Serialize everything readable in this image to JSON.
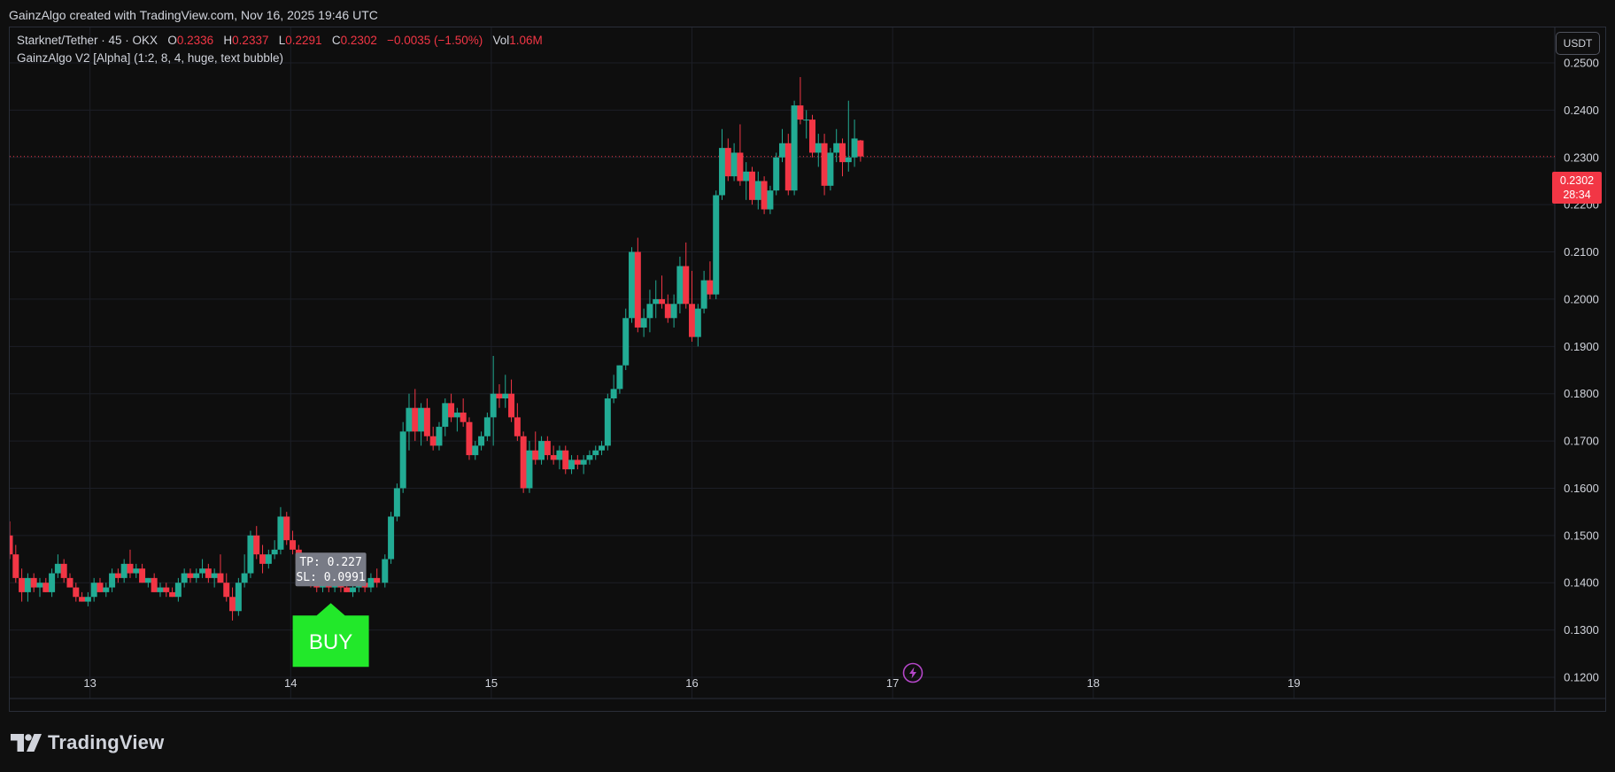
{
  "header": {
    "credit": "GainzAlgo created with TradingView.com, Nov 16, 2025 19:46 UTC"
  },
  "legend": {
    "symbol": "Starknet/Tether · 45 · OKX",
    "o_label": "O",
    "o_value": "0.2336",
    "h_label": "H",
    "h_value": "0.2337",
    "l_label": "L",
    "l_value": "0.2291",
    "c_label": "C",
    "c_value": "0.2302",
    "change": "−0.0035 (−1.50%)",
    "vol_label": "Vol",
    "vol_value": "1.06M",
    "indicator": "GainzAlgo V2 [Alpha] (1:2, 8, 4, huge, text bubble)"
  },
  "currency_button": "USDT",
  "last_price": {
    "value": "0.2302",
    "countdown": "28:34"
  },
  "footer": {
    "brand": "TradingView"
  },
  "colors": {
    "up": "#22ab94",
    "down": "#f23645",
    "buy": "#22e82a",
    "background": "#0e0e0e",
    "grid": "#1c1f27"
  },
  "chart_data": {
    "type": "candlestick",
    "interval": "45",
    "x_range": [
      12.6,
      20.3
    ],
    "ylim": [
      0.1155,
      0.2575
    ],
    "y_ticks": [
      "0.1200",
      "0.1300",
      "0.1400",
      "0.1500",
      "0.1600",
      "0.1700",
      "0.1800",
      "0.1900",
      "0.2000",
      "0.2100",
      "0.2200",
      "0.2300",
      "0.2400",
      "0.2500"
    ],
    "x_ticks": [
      {
        "label": "13",
        "x": 13
      },
      {
        "label": "14",
        "x": 14
      },
      {
        "label": "15",
        "x": 15
      },
      {
        "label": "16",
        "x": 16
      },
      {
        "label": "17",
        "x": 17
      },
      {
        "label": "18",
        "x": 18
      },
      {
        "label": "19",
        "x": 19
      }
    ],
    "last_price": 0.2302,
    "candles": [
      {
        "x": 12.6,
        "o": 0.15,
        "h": 0.153,
        "l": 0.145,
        "c": 0.146
      },
      {
        "x": 12.63,
        "o": 0.146,
        "h": 0.148,
        "l": 0.14,
        "c": 0.141
      },
      {
        "x": 12.66,
        "o": 0.141,
        "h": 0.143,
        "l": 0.136,
        "c": 0.138
      },
      {
        "x": 12.69,
        "o": 0.138,
        "h": 0.142,
        "l": 0.136,
        "c": 0.141
      },
      {
        "x": 12.72,
        "o": 0.141,
        "h": 0.142,
        "l": 0.138,
        "c": 0.139
      },
      {
        "x": 12.75,
        "o": 0.139,
        "h": 0.141,
        "l": 0.137,
        "c": 0.14
      },
      {
        "x": 12.78,
        "o": 0.14,
        "h": 0.141,
        "l": 0.138,
        "c": 0.138
      },
      {
        "x": 12.81,
        "o": 0.138,
        "h": 0.143,
        "l": 0.137,
        "c": 0.142
      },
      {
        "x": 12.84,
        "o": 0.142,
        "h": 0.146,
        "l": 0.141,
        "c": 0.144
      },
      {
        "x": 12.87,
        "o": 0.144,
        "h": 0.145,
        "l": 0.14,
        "c": 0.141
      },
      {
        "x": 12.9,
        "o": 0.141,
        "h": 0.142,
        "l": 0.139,
        "c": 0.139
      },
      {
        "x": 12.93,
        "o": 0.139,
        "h": 0.14,
        "l": 0.136,
        "c": 0.137
      },
      {
        "x": 12.96,
        "o": 0.137,
        "h": 0.138,
        "l": 0.136,
        "c": 0.136
      },
      {
        "x": 12.99,
        "o": 0.136,
        "h": 0.138,
        "l": 0.135,
        "c": 0.137
      },
      {
        "x": 13.02,
        "o": 0.137,
        "h": 0.141,
        "l": 0.136,
        "c": 0.14
      },
      {
        "x": 13.05,
        "o": 0.14,
        "h": 0.141,
        "l": 0.138,
        "c": 0.138
      },
      {
        "x": 13.08,
        "o": 0.138,
        "h": 0.14,
        "l": 0.137,
        "c": 0.139
      },
      {
        "x": 13.11,
        "o": 0.139,
        "h": 0.143,
        "l": 0.138,
        "c": 0.142
      },
      {
        "x": 13.14,
        "o": 0.142,
        "h": 0.143,
        "l": 0.14,
        "c": 0.141
      },
      {
        "x": 13.17,
        "o": 0.141,
        "h": 0.145,
        "l": 0.14,
        "c": 0.144
      },
      {
        "x": 13.2,
        "o": 0.144,
        "h": 0.147,
        "l": 0.141,
        "c": 0.142
      },
      {
        "x": 13.23,
        "o": 0.142,
        "h": 0.144,
        "l": 0.141,
        "c": 0.143
      },
      {
        "x": 13.26,
        "o": 0.143,
        "h": 0.144,
        "l": 0.14,
        "c": 0.14
      },
      {
        "x": 13.29,
        "o": 0.14,
        "h": 0.141,
        "l": 0.139,
        "c": 0.141
      },
      {
        "x": 13.32,
        "o": 0.141,
        "h": 0.142,
        "l": 0.138,
        "c": 0.138
      },
      {
        "x": 13.35,
        "o": 0.138,
        "h": 0.14,
        "l": 0.137,
        "c": 0.139
      },
      {
        "x": 13.38,
        "o": 0.139,
        "h": 0.14,
        "l": 0.137,
        "c": 0.138
      },
      {
        "x": 13.41,
        "o": 0.138,
        "h": 0.139,
        "l": 0.137,
        "c": 0.137
      },
      {
        "x": 13.44,
        "o": 0.137,
        "h": 0.141,
        "l": 0.136,
        "c": 0.14
      },
      {
        "x": 13.47,
        "o": 0.14,
        "h": 0.143,
        "l": 0.139,
        "c": 0.142
      },
      {
        "x": 13.5,
        "o": 0.142,
        "h": 0.143,
        "l": 0.14,
        "c": 0.141
      },
      {
        "x": 13.53,
        "o": 0.141,
        "h": 0.143,
        "l": 0.14,
        "c": 0.142
      },
      {
        "x": 13.56,
        "o": 0.142,
        "h": 0.145,
        "l": 0.141,
        "c": 0.143
      },
      {
        "x": 13.59,
        "o": 0.143,
        "h": 0.144,
        "l": 0.14,
        "c": 0.141
      },
      {
        "x": 13.62,
        "o": 0.141,
        "h": 0.143,
        "l": 0.139,
        "c": 0.142
      },
      {
        "x": 13.65,
        "o": 0.142,
        "h": 0.146,
        "l": 0.14,
        "c": 0.14
      },
      {
        "x": 13.68,
        "o": 0.14,
        "h": 0.142,
        "l": 0.136,
        "c": 0.137
      },
      {
        "x": 13.71,
        "o": 0.137,
        "h": 0.139,
        "l": 0.132,
        "c": 0.134
      },
      {
        "x": 13.74,
        "o": 0.134,
        "h": 0.141,
        "l": 0.133,
        "c": 0.14
      },
      {
        "x": 13.77,
        "o": 0.14,
        "h": 0.146,
        "l": 0.139,
        "c": 0.142
      },
      {
        "x": 13.8,
        "o": 0.142,
        "h": 0.151,
        "l": 0.141,
        "c": 0.15
      },
      {
        "x": 13.83,
        "o": 0.15,
        "h": 0.152,
        "l": 0.145,
        "c": 0.146
      },
      {
        "x": 13.86,
        "o": 0.146,
        "h": 0.148,
        "l": 0.142,
        "c": 0.144
      },
      {
        "x": 13.89,
        "o": 0.144,
        "h": 0.147,
        "l": 0.143,
        "c": 0.146
      },
      {
        "x": 13.92,
        "o": 0.146,
        "h": 0.149,
        "l": 0.145,
        "c": 0.147
      },
      {
        "x": 13.95,
        "o": 0.147,
        "h": 0.156,
        "l": 0.146,
        "c": 0.154
      },
      {
        "x": 13.98,
        "o": 0.154,
        "h": 0.155,
        "l": 0.148,
        "c": 0.149
      },
      {
        "x": 14.01,
        "o": 0.149,
        "h": 0.151,
        "l": 0.146,
        "c": 0.147
      },
      {
        "x": 14.04,
        "o": 0.147,
        "h": 0.148,
        "l": 0.143,
        "c": 0.144
      },
      {
        "x": 14.07,
        "o": 0.144,
        "h": 0.146,
        "l": 0.141,
        "c": 0.142
      },
      {
        "x": 14.1,
        "o": 0.142,
        "h": 0.143,
        "l": 0.139,
        "c": 0.14
      },
      {
        "x": 14.13,
        "o": 0.14,
        "h": 0.141,
        "l": 0.138,
        "c": 0.139
      },
      {
        "x": 14.16,
        "o": 0.139,
        "h": 0.141,
        "l": 0.138,
        "c": 0.14
      },
      {
        "x": 14.19,
        "o": 0.14,
        "h": 0.142,
        "l": 0.138,
        "c": 0.139
      },
      {
        "x": 14.22,
        "o": 0.139,
        "h": 0.141,
        "l": 0.138,
        "c": 0.14
      },
      {
        "x": 14.25,
        "o": 0.14,
        "h": 0.141,
        "l": 0.138,
        "c": 0.139
      },
      {
        "x": 14.28,
        "o": 0.139,
        "h": 0.14,
        "l": 0.138,
        "c": 0.138
      },
      {
        "x": 14.31,
        "o": 0.138,
        "h": 0.14,
        "l": 0.137,
        "c": 0.139
      },
      {
        "x": 14.34,
        "o": 0.139,
        "h": 0.141,
        "l": 0.138,
        "c": 0.14
      },
      {
        "x": 14.37,
        "o": 0.14,
        "h": 0.141,
        "l": 0.138,
        "c": 0.139
      },
      {
        "x": 14.4,
        "o": 0.139,
        "h": 0.142,
        "l": 0.138,
        "c": 0.141
      },
      {
        "x": 14.43,
        "o": 0.141,
        "h": 0.143,
        "l": 0.139,
        "c": 0.14
      },
      {
        "x": 14.47,
        "o": 0.14,
        "h": 0.146,
        "l": 0.139,
        "c": 0.145
      },
      {
        "x": 14.5,
        "o": 0.145,
        "h": 0.155,
        "l": 0.144,
        "c": 0.154
      },
      {
        "x": 14.53,
        "o": 0.154,
        "h": 0.161,
        "l": 0.153,
        "c": 0.16
      },
      {
        "x": 14.56,
        "o": 0.16,
        "h": 0.174,
        "l": 0.159,
        "c": 0.172
      },
      {
        "x": 14.59,
        "o": 0.172,
        "h": 0.18,
        "l": 0.168,
        "c": 0.177
      },
      {
        "x": 14.62,
        "o": 0.177,
        "h": 0.181,
        "l": 0.17,
        "c": 0.172
      },
      {
        "x": 14.65,
        "o": 0.172,
        "h": 0.178,
        "l": 0.169,
        "c": 0.177
      },
      {
        "x": 14.68,
        "o": 0.177,
        "h": 0.179,
        "l": 0.17,
        "c": 0.171
      },
      {
        "x": 14.71,
        "o": 0.171,
        "h": 0.173,
        "l": 0.168,
        "c": 0.169
      },
      {
        "x": 14.74,
        "o": 0.169,
        "h": 0.174,
        "l": 0.168,
        "c": 0.173
      },
      {
        "x": 14.77,
        "o": 0.173,
        "h": 0.179,
        "l": 0.171,
        "c": 0.178
      },
      {
        "x": 14.8,
        "o": 0.178,
        "h": 0.18,
        "l": 0.174,
        "c": 0.175
      },
      {
        "x": 14.83,
        "o": 0.175,
        "h": 0.177,
        "l": 0.172,
        "c": 0.176
      },
      {
        "x": 14.86,
        "o": 0.176,
        "h": 0.179,
        "l": 0.173,
        "c": 0.174
      },
      {
        "x": 14.89,
        "o": 0.174,
        "h": 0.175,
        "l": 0.166,
        "c": 0.167
      },
      {
        "x": 14.92,
        "o": 0.167,
        "h": 0.17,
        "l": 0.166,
        "c": 0.169
      },
      {
        "x": 14.95,
        "o": 0.169,
        "h": 0.172,
        "l": 0.168,
        "c": 0.171
      },
      {
        "x": 14.98,
        "o": 0.171,
        "h": 0.176,
        "l": 0.17,
        "c": 0.175
      },
      {
        "x": 15.01,
        "o": 0.175,
        "h": 0.188,
        "l": 0.169,
        "c": 0.18
      },
      {
        "x": 15.04,
        "o": 0.18,
        "h": 0.182,
        "l": 0.177,
        "c": 0.179
      },
      {
        "x": 15.07,
        "o": 0.179,
        "h": 0.184,
        "l": 0.177,
        "c": 0.18
      },
      {
        "x": 15.1,
        "o": 0.18,
        "h": 0.183,
        "l": 0.174,
        "c": 0.175
      },
      {
        "x": 15.13,
        "o": 0.175,
        "h": 0.178,
        "l": 0.17,
        "c": 0.171
      },
      {
        "x": 15.16,
        "o": 0.171,
        "h": 0.172,
        "l": 0.159,
        "c": 0.16
      },
      {
        "x": 15.19,
        "o": 0.16,
        "h": 0.17,
        "l": 0.159,
        "c": 0.168
      },
      {
        "x": 15.22,
        "o": 0.168,
        "h": 0.172,
        "l": 0.165,
        "c": 0.166
      },
      {
        "x": 15.25,
        "o": 0.166,
        "h": 0.171,
        "l": 0.165,
        "c": 0.17
      },
      {
        "x": 15.28,
        "o": 0.17,
        "h": 0.171,
        "l": 0.166,
        "c": 0.167
      },
      {
        "x": 15.31,
        "o": 0.167,
        "h": 0.169,
        "l": 0.165,
        "c": 0.166
      },
      {
        "x": 15.34,
        "o": 0.166,
        "h": 0.169,
        "l": 0.164,
        "c": 0.168
      },
      {
        "x": 15.37,
        "o": 0.168,
        "h": 0.169,
        "l": 0.163,
        "c": 0.164
      },
      {
        "x": 15.4,
        "o": 0.164,
        "h": 0.167,
        "l": 0.163,
        "c": 0.166
      },
      {
        "x": 15.43,
        "o": 0.166,
        "h": 0.167,
        "l": 0.164,
        "c": 0.165
      },
      {
        "x": 15.46,
        "o": 0.165,
        "h": 0.167,
        "l": 0.163,
        "c": 0.166
      },
      {
        "x": 15.49,
        "o": 0.166,
        "h": 0.168,
        "l": 0.165,
        "c": 0.167
      },
      {
        "x": 15.52,
        "o": 0.167,
        "h": 0.169,
        "l": 0.166,
        "c": 0.168
      },
      {
        "x": 15.55,
        "o": 0.168,
        "h": 0.17,
        "l": 0.167,
        "c": 0.169
      },
      {
        "x": 15.58,
        "o": 0.169,
        "h": 0.18,
        "l": 0.168,
        "c": 0.179
      },
      {
        "x": 15.61,
        "o": 0.179,
        "h": 0.184,
        "l": 0.178,
        "c": 0.181
      },
      {
        "x": 15.64,
        "o": 0.181,
        "h": 0.186,
        "l": 0.18,
        "c": 0.186
      },
      {
        "x": 15.67,
        "o": 0.186,
        "h": 0.198,
        "l": 0.185,
        "c": 0.196
      },
      {
        "x": 15.7,
        "o": 0.196,
        "h": 0.211,
        "l": 0.195,
        "c": 0.21
      },
      {
        "x": 15.73,
        "o": 0.21,
        "h": 0.213,
        "l": 0.193,
        "c": 0.194
      },
      {
        "x": 15.76,
        "o": 0.194,
        "h": 0.198,
        "l": 0.192,
        "c": 0.196
      },
      {
        "x": 15.79,
        "o": 0.196,
        "h": 0.202,
        "l": 0.193,
        "c": 0.199
      },
      {
        "x": 15.82,
        "o": 0.199,
        "h": 0.204,
        "l": 0.196,
        "c": 0.2
      },
      {
        "x": 15.85,
        "o": 0.2,
        "h": 0.205,
        "l": 0.198,
        "c": 0.199
      },
      {
        "x": 15.88,
        "o": 0.199,
        "h": 0.201,
        "l": 0.195,
        "c": 0.196
      },
      {
        "x": 15.91,
        "o": 0.196,
        "h": 0.201,
        "l": 0.194,
        "c": 0.199
      },
      {
        "x": 15.94,
        "o": 0.199,
        "h": 0.209,
        "l": 0.197,
        "c": 0.207
      },
      {
        "x": 15.97,
        "o": 0.207,
        "h": 0.212,
        "l": 0.198,
        "c": 0.199
      },
      {
        "x": 16.0,
        "o": 0.199,
        "h": 0.206,
        "l": 0.191,
        "c": 0.192
      },
      {
        "x": 16.03,
        "o": 0.192,
        "h": 0.199,
        "l": 0.19,
        "c": 0.198
      },
      {
        "x": 16.06,
        "o": 0.198,
        "h": 0.206,
        "l": 0.197,
        "c": 0.204
      },
      {
        "x": 16.09,
        "o": 0.204,
        "h": 0.208,
        "l": 0.2,
        "c": 0.201
      },
      {
        "x": 16.12,
        "o": 0.201,
        "h": 0.223,
        "l": 0.2,
        "c": 0.222
      },
      {
        "x": 16.15,
        "o": 0.222,
        "h": 0.236,
        "l": 0.221,
        "c": 0.232
      },
      {
        "x": 16.18,
        "o": 0.232,
        "h": 0.234,
        "l": 0.225,
        "c": 0.226
      },
      {
        "x": 16.21,
        "o": 0.226,
        "h": 0.233,
        "l": 0.225,
        "c": 0.231
      },
      {
        "x": 16.24,
        "o": 0.231,
        "h": 0.237,
        "l": 0.224,
        "c": 0.225
      },
      {
        "x": 16.27,
        "o": 0.225,
        "h": 0.229,
        "l": 0.221,
        "c": 0.227
      },
      {
        "x": 16.3,
        "o": 0.227,
        "h": 0.228,
        "l": 0.22,
        "c": 0.221
      },
      {
        "x": 16.33,
        "o": 0.221,
        "h": 0.227,
        "l": 0.219,
        "c": 0.225
      },
      {
        "x": 16.36,
        "o": 0.225,
        "h": 0.226,
        "l": 0.218,
        "c": 0.219
      },
      {
        "x": 16.39,
        "o": 0.219,
        "h": 0.224,
        "l": 0.218,
        "c": 0.223
      },
      {
        "x": 16.42,
        "o": 0.223,
        "h": 0.231,
        "l": 0.222,
        "c": 0.23
      },
      {
        "x": 16.45,
        "o": 0.23,
        "h": 0.236,
        "l": 0.229,
        "c": 0.233
      },
      {
        "x": 16.48,
        "o": 0.233,
        "h": 0.235,
        "l": 0.222,
        "c": 0.223
      },
      {
        "x": 16.51,
        "o": 0.223,
        "h": 0.242,
        "l": 0.222,
        "c": 0.241
      },
      {
        "x": 16.54,
        "o": 0.241,
        "h": 0.247,
        "l": 0.237,
        "c": 0.238
      },
      {
        "x": 16.57,
        "o": 0.238,
        "h": 0.24,
        "l": 0.234,
        "c": 0.238
      },
      {
        "x": 16.6,
        "o": 0.238,
        "h": 0.239,
        "l": 0.23,
        "c": 0.231
      },
      {
        "x": 16.63,
        "o": 0.231,
        "h": 0.235,
        "l": 0.228,
        "c": 0.233
      },
      {
        "x": 16.66,
        "o": 0.233,
        "h": 0.235,
        "l": 0.222,
        "c": 0.224
      },
      {
        "x": 16.69,
        "o": 0.224,
        "h": 0.232,
        "l": 0.223,
        "c": 0.231
      },
      {
        "x": 16.72,
        "o": 0.231,
        "h": 0.236,
        "l": 0.229,
        "c": 0.233
      },
      {
        "x": 16.75,
        "o": 0.233,
        "h": 0.234,
        "l": 0.226,
        "c": 0.229
      },
      {
        "x": 16.78,
        "o": 0.229,
        "h": 0.242,
        "l": 0.227,
        "c": 0.23
      },
      {
        "x": 16.81,
        "o": 0.23,
        "h": 0.238,
        "l": 0.228,
        "c": 0.234
      },
      {
        "x": 16.84,
        "o": 0.2336,
        "h": 0.2337,
        "l": 0.2291,
        "c": 0.2302
      }
    ],
    "signal": {
      "x": 14.2,
      "price": 0.1385,
      "label": "BUY",
      "tp": "TP: 0.227",
      "sl": "SL: 0.0991"
    }
  }
}
